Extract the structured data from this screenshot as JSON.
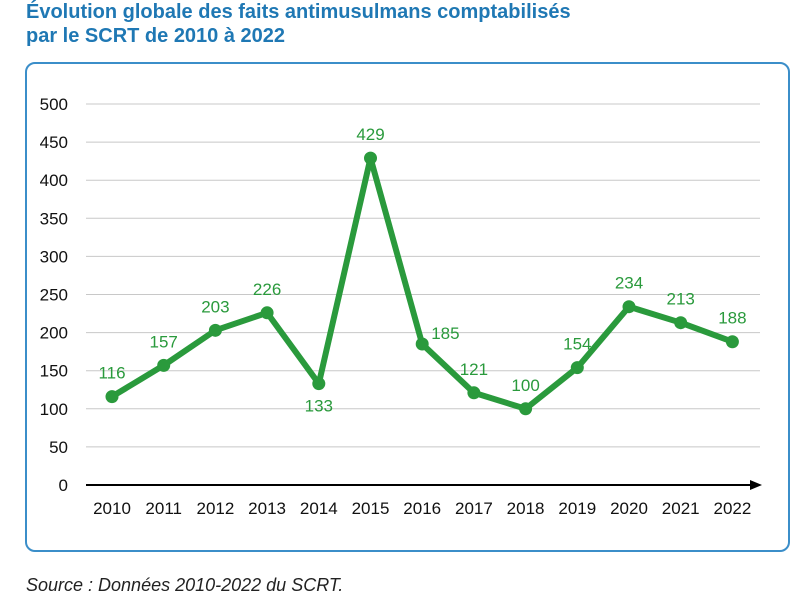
{
  "title_line1": "Évolution globale des faits antimusulmans comptabilisés",
  "title_line2": "par le SCRT de 2010 à 2022",
  "source": "Source : Données 2010-2022 du SCRT.",
  "colors": {
    "line": "#2a9a3c",
    "label": "#2a9a3c",
    "title": "#1f78b4",
    "frame": "#3b8ec9",
    "grid": "#c8c8c8"
  },
  "chart_data": {
    "type": "line",
    "title": "Évolution globale des faits antimusulmans comptabilisés par le SCRT de 2010 à 2022",
    "categories": [
      "2010",
      "2011",
      "2012",
      "2013",
      "2014",
      "2015",
      "2016",
      "2017",
      "2018",
      "2019",
      "2020",
      "2021",
      "2022"
    ],
    "values": [
      116,
      157,
      203,
      226,
      133,
      429,
      185,
      121,
      100,
      154,
      234,
      213,
      188
    ],
    "ylim": [
      0,
      500
    ],
    "yticks": [
      0,
      50,
      100,
      150,
      200,
      250,
      300,
      350,
      400,
      450,
      500
    ],
    "grid": true,
    "label_positions": [
      "above",
      "above",
      "above",
      "above",
      "below",
      "above",
      "right",
      "above",
      "above",
      "above",
      "above",
      "above",
      "above"
    ]
  }
}
